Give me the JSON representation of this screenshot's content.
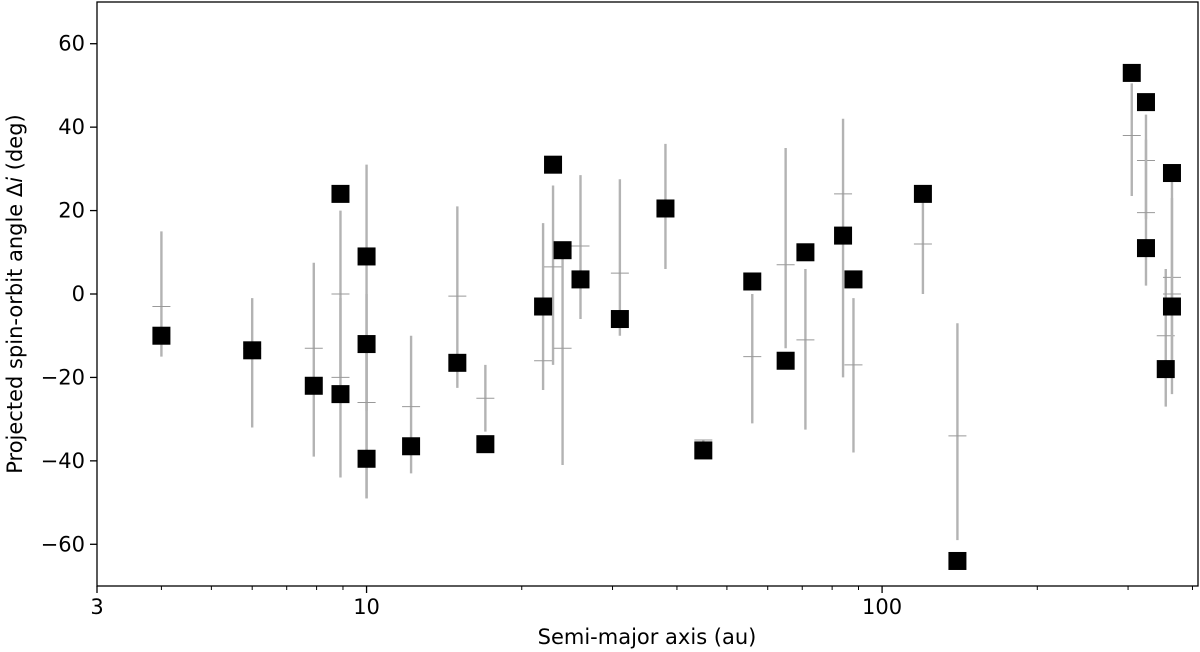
{
  "chart_data": {
    "type": "scatter",
    "title": "",
    "xlabel": "Semi-major axis (au)",
    "ylabel_prefix": "Projected spin-orbit angle Δ",
    "ylabel_italic": "i",
    "ylabel_suffix": " (deg)",
    "x_scale": "log",
    "xlim": [
      3,
      410
    ],
    "ylim": [
      -70,
      70
    ],
    "grid": false,
    "x_ticks": [
      3,
      10,
      100
    ],
    "x_tick_labels": [
      "3",
      "10",
      "100"
    ],
    "y_ticks": [
      -60,
      -40,
      -20,
      0,
      20,
      40,
      60
    ],
    "y_tick_labels": [
      "−60",
      "−40",
      "−20",
      "0",
      "20",
      "40",
      "60"
    ],
    "marker": "square",
    "marker_color": "#000000",
    "errorbar_color": "#b3b3b3",
    "series": [
      {
        "points": [
          {
            "x": 4.0,
            "y": -10,
            "center": -3,
            "low": -15,
            "high": 15
          },
          {
            "x": 6.0,
            "y": -13.5,
            "center": -13,
            "low": -32,
            "high": -1
          },
          {
            "x": 7.9,
            "y": -22,
            "center": -13,
            "low": -39,
            "high": 7.5
          },
          {
            "x": 8.9,
            "y": 24,
            "center": 0,
            "low": -20,
            "high": 20
          },
          {
            "x": 8.9,
            "y": -24,
            "center": -20,
            "low": -44,
            "high": -1
          },
          {
            "x": 10.0,
            "y": 9,
            "center": -26,
            "low": -49,
            "high": 31
          },
          {
            "x": 10.0,
            "y": -12,
            "center": -14,
            "low": -28,
            "high": 0
          },
          {
            "x": 10.0,
            "y": -39.5,
            "center": -26,
            "low": -49,
            "high": -14
          },
          {
            "x": 12.2,
            "y": -36.5,
            "center": -27,
            "low": -43,
            "high": -10
          },
          {
            "x": 15.0,
            "y": -16.5,
            "center": -0.5,
            "low": -22.5,
            "high": 21
          },
          {
            "x": 17.0,
            "y": -36,
            "center": -25,
            "low": -33,
            "high": -17
          },
          {
            "x": 22.0,
            "y": -3,
            "center": -16,
            "low": -23,
            "high": 17
          },
          {
            "x": 23.0,
            "y": 31,
            "center": 6.5,
            "low": -17,
            "high": 26
          },
          {
            "x": 24.0,
            "y": 10.5,
            "center": -13,
            "low": -41,
            "high": 10
          },
          {
            "x": 26.0,
            "y": 3.5,
            "center": 11.5,
            "low": -6,
            "high": 28.5
          },
          {
            "x": 31.0,
            "y": -6,
            "center": 5,
            "low": -10,
            "high": 27.5
          },
          {
            "x": 38.0,
            "y": 20.5,
            "center": 20,
            "low": 6,
            "high": 36
          },
          {
            "x": 45.0,
            "y": -37.5,
            "center": -35,
            "low": -36,
            "high": -35
          },
          {
            "x": 56.0,
            "y": 3,
            "center": -15,
            "low": -31,
            "high": 0
          },
          {
            "x": 65.0,
            "y": -16,
            "center": 7,
            "low": -13,
            "high": 35
          },
          {
            "x": 71.0,
            "y": 10,
            "center": -11,
            "low": -32.5,
            "high": 6
          },
          {
            "x": 84.0,
            "y": 14,
            "center": 24,
            "low": -20,
            "high": 42
          },
          {
            "x": 88.0,
            "y": 3.5,
            "center": -17,
            "low": -38,
            "high": -1
          },
          {
            "x": 120.0,
            "y": 24,
            "center": 12,
            "low": 0,
            "high": 22
          },
          {
            "x": 140.0,
            "y": -64,
            "center": -34,
            "low": -59,
            "high": -7
          },
          {
            "x": 305.0,
            "y": 53,
            "center": 38,
            "low": 23.5,
            "high": 50.5
          },
          {
            "x": 325.0,
            "y": 46,
            "center": 32,
            "low": 18,
            "high": 43
          },
          {
            "x": 325.0,
            "y": 11,
            "center": 19.5,
            "low": 2,
            "high": 37
          },
          {
            "x": 355.0,
            "y": -18,
            "center": -10,
            "low": -27,
            "high": 6
          },
          {
            "x": 365.0,
            "y": 29,
            "center": 4,
            "low": -17,
            "high": 27
          },
          {
            "x": 365.0,
            "y": -3,
            "center": 0,
            "low": -24,
            "high": 23
          }
        ]
      }
    ]
  }
}
